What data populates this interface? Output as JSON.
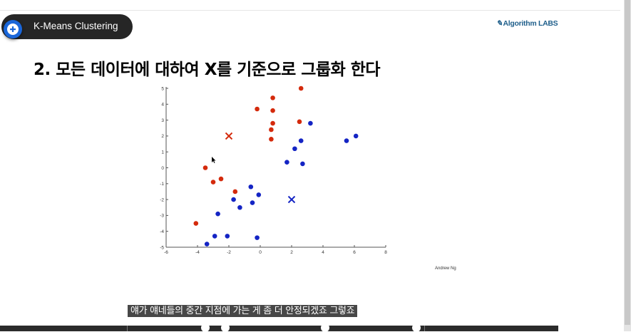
{
  "header": {
    "pill_title": "K-Means Clustering",
    "add_icon": "plus-circle-icon",
    "logo_text": "Algorithm LABS"
  },
  "slide": {
    "heading": "2. 모든 데이터에 대하여 X를 기준으로 그룹화 한다",
    "credit": "Andrew Ng"
  },
  "video": {
    "caption": "얘가 얘네들의 중간 지점에 가는 게 좀 더 안정되겠죠 그렇죠"
  },
  "colors": {
    "red": "#d42a0c",
    "blue": "#1424c4",
    "accent": "#1a66d9"
  },
  "chart_data": {
    "type": "scatter",
    "title": "",
    "xlabel": "",
    "ylabel": "",
    "xlim": [
      -6,
      8
    ],
    "ylim": [
      -5,
      5
    ],
    "xticks": [
      -6,
      -4,
      -2,
      0,
      2,
      4,
      6,
      8
    ],
    "yticks": [
      5,
      4,
      3,
      2,
      1,
      0,
      -1,
      -2,
      -3,
      -4,
      -5
    ],
    "grid": false,
    "series": [
      {
        "color": "#d42a0c",
        "points": [
          [
            2.6,
            5.0
          ],
          [
            0.8,
            4.4
          ],
          [
            -0.2,
            3.7
          ],
          [
            0.8,
            3.6
          ],
          [
            0.8,
            2.8
          ],
          [
            2.5,
            2.9
          ],
          [
            0.7,
            2.4
          ],
          [
            0.7,
            1.8
          ],
          [
            -3.5,
            0.0
          ],
          [
            -2.5,
            -0.7
          ],
          [
            -3.0,
            -0.9
          ],
          [
            -1.6,
            -1.5
          ],
          [
            -4.1,
            -3.5
          ]
        ]
      },
      {
        "color": "#1424c4",
        "points": [
          [
            3.2,
            2.8
          ],
          [
            6.1,
            2.0
          ],
          [
            5.5,
            1.7
          ],
          [
            2.6,
            1.7
          ],
          [
            2.2,
            1.2
          ],
          [
            1.7,
            0.35
          ],
          [
            2.7,
            0.25
          ],
          [
            -0.6,
            -1.2
          ],
          [
            -0.1,
            -1.7
          ],
          [
            -1.7,
            -2.0
          ],
          [
            -0.5,
            -2.2
          ],
          [
            -1.3,
            -2.5
          ],
          [
            -2.7,
            -2.9
          ],
          [
            -2.9,
            -4.3
          ],
          [
            -2.1,
            -4.3
          ],
          [
            -0.2,
            -4.4
          ],
          [
            -3.4,
            -4.8
          ]
        ]
      }
    ],
    "centroids": [
      {
        "color": "#d42a0c",
        "point": [
          -2.0,
          2.0
        ]
      },
      {
        "color": "#1424c4",
        "point": [
          2.0,
          -2.0
        ]
      }
    ]
  }
}
